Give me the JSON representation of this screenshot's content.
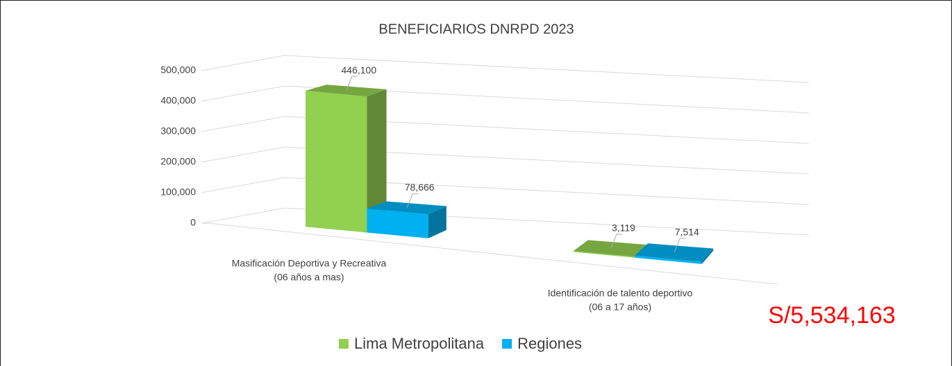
{
  "chart_data": {
    "type": "bar3d",
    "title": "BENEFICIARIOS DNRPD 2023",
    "categories": [
      [
        "Masificación Deportiva y Recreativa",
        "(06 años a mas)"
      ],
      [
        "Identificación de talento deportivo",
        "(06 a 17 años)"
      ]
    ],
    "series": [
      {
        "name": "Lima Metropolitana",
        "color": "#92d050",
        "values": [
          446100,
          3119
        ],
        "value_labels": [
          "446,100",
          "3,119"
        ]
      },
      {
        "name": "Regiones",
        "color": "#00b0f0",
        "values": [
          78666,
          7514
        ],
        "value_labels": [
          "78,666",
          "7,514"
        ]
      }
    ],
    "ylim": [
      0,
      500000
    ],
    "yticks": [
      0,
      {
        "value": 100000,
        "label": "100,000"
      },
      {
        "value": 200000,
        "label": "200,000"
      },
      {
        "value": 300000,
        "label": "300,000"
      },
      {
        "value": 400000,
        "label": "400,000"
      },
      {
        "value": 500000,
        "label": "500,000"
      }
    ],
    "grid": true,
    "annotation": "S/5,534,163"
  }
}
